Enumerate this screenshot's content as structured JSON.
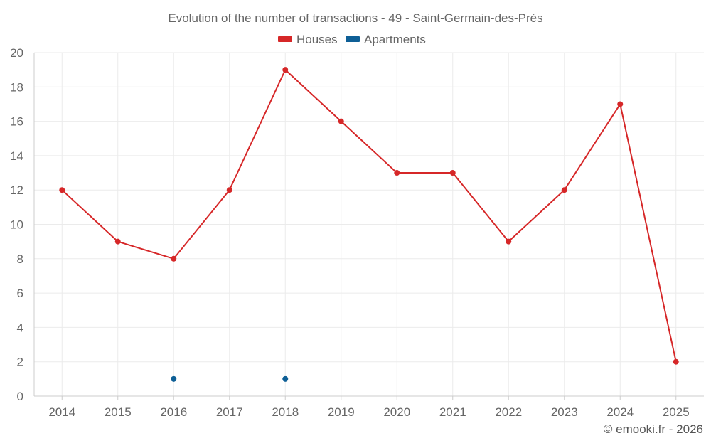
{
  "chart_data": {
    "type": "line",
    "title": "Evolution of the number of transactions - 49 - Saint-Germain-des-Prés",
    "x": [
      "2014",
      "2015",
      "2016",
      "2017",
      "2018",
      "2019",
      "2020",
      "2021",
      "2022",
      "2023",
      "2024",
      "2025"
    ],
    "ylim": [
      0,
      20
    ],
    "yticks": [
      0,
      2,
      4,
      6,
      8,
      10,
      12,
      14,
      16,
      18,
      20
    ],
    "grid": true,
    "legend_position": "top-center",
    "series": [
      {
        "name": "Houses",
        "color": "#d62728",
        "line": true,
        "values": [
          12,
          9,
          8,
          12,
          19,
          16,
          13,
          13,
          9,
          12,
          17,
          2
        ]
      },
      {
        "name": "Apartments",
        "color": "#0e5f96",
        "line": false,
        "values": [
          null,
          null,
          1,
          null,
          1,
          null,
          null,
          null,
          null,
          null,
          null,
          null
        ]
      }
    ],
    "credit": "© emooki.fr - 2026"
  }
}
